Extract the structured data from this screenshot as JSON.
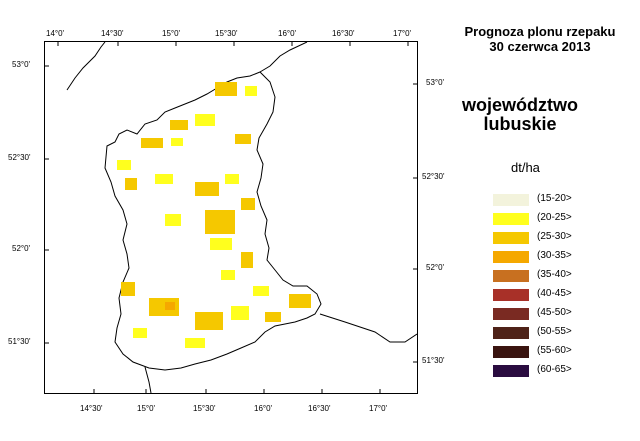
{
  "title": {
    "line1": "Prognoza plonu rzepaku",
    "line2": "30 czerwca 2013"
  },
  "region": {
    "line1": "województwo",
    "line2": "lubuskie"
  },
  "legend": {
    "unit": "dt/ha",
    "items": [
      {
        "label": "(15-20>",
        "color": "#f3f3dc"
      },
      {
        "label": "(20-25>",
        "color": "#ffff1e"
      },
      {
        "label": "(25-30>",
        "color": "#f5c800"
      },
      {
        "label": "(30-35>",
        "color": "#f5a800"
      },
      {
        "label": "(35-40>",
        "color": "#c87020"
      },
      {
        "label": "(40-45>",
        "color": "#a83028"
      },
      {
        "label": "(45-50>",
        "color": "#7a2a22"
      },
      {
        "label": "(50-55>",
        "color": "#4e2218"
      },
      {
        "label": "(55-60>",
        "color": "#3a1410"
      },
      {
        "label": "(60-65>",
        "color": "#2a0c40"
      }
    ]
  },
  "axes": {
    "top_ticks": [
      "14°0'",
      "14°30'",
      "15°0'",
      "15°30'",
      "16°0'",
      "16°30'",
      "17°0'"
    ],
    "bottom_ticks": [
      "14°30'",
      "15°0'",
      "15°30'",
      "16°0'",
      "16°30'",
      "17°0'"
    ],
    "left_ticks": [
      "53°0'",
      "52°30'",
      "52°0'",
      "51°30'"
    ],
    "right_ticks": [
      "53°0'",
      "52°30'",
      "52°0'",
      "51°30'"
    ]
  }
}
